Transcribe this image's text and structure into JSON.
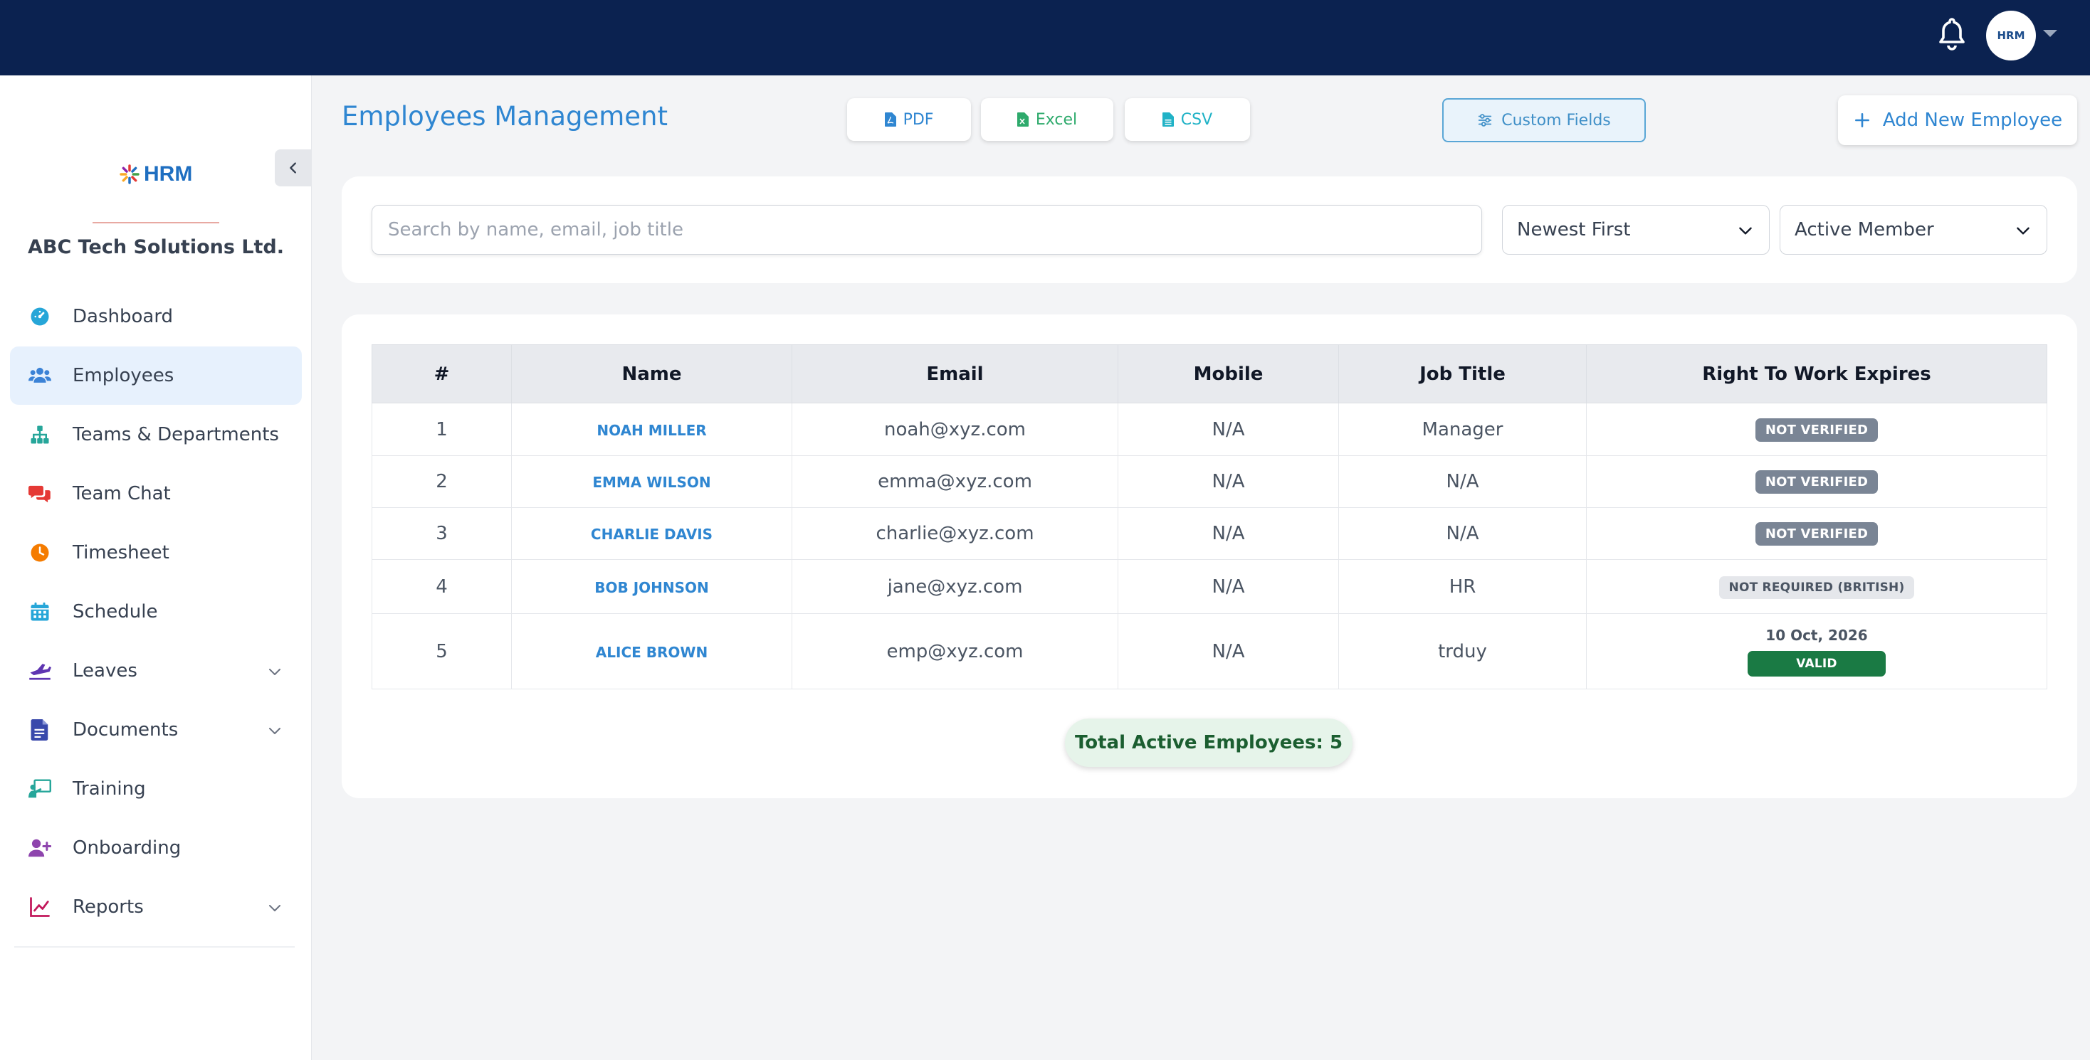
{
  "topbar": {
    "avatar_text": "HRM",
    "icons": [
      "bell-icon",
      "chevron-down-icon"
    ]
  },
  "sidebar": {
    "logo_text": "HRM",
    "company": "ABC Tech Solutions Ltd.",
    "items": [
      {
        "label": "Dashboard",
        "icon": "dashboard-icon",
        "color": "#26a6d8"
      },
      {
        "label": "Employees",
        "icon": "users-icon",
        "color": "#3b82d6",
        "active": true
      },
      {
        "label": "Teams & Departments",
        "icon": "org-chart-icon",
        "color": "#26a69a"
      },
      {
        "label": "Team Chat",
        "icon": "chat-icon",
        "color": "#e53935"
      },
      {
        "label": "Timesheet",
        "icon": "clock-icon",
        "color": "#f57c00"
      },
      {
        "label": "Schedule",
        "icon": "calendar-icon",
        "color": "#26a6d8"
      },
      {
        "label": "Leaves",
        "icon": "plane-icon",
        "color": "#5e35b1",
        "has_children": true
      },
      {
        "label": "Documents",
        "icon": "document-icon",
        "color": "#3949ab",
        "has_children": true
      },
      {
        "label": "Training",
        "icon": "training-icon",
        "color": "#26a69a"
      },
      {
        "label": "Onboarding",
        "icon": "user-plus-icon",
        "color": "#8e44ad"
      },
      {
        "label": "Reports",
        "icon": "line-chart-icon",
        "color": "#c2185b",
        "has_children": true
      }
    ]
  },
  "header": {
    "title": "Employees Management",
    "export": {
      "pdf": "PDF",
      "excel": "Excel",
      "csv": "CSV"
    },
    "custom_fields": "Custom Fields",
    "add_employee": "Add New Employee"
  },
  "filters": {
    "search_placeholder": "Search by name, email, job title",
    "search_value": "",
    "sort": "Newest First",
    "status": "Active Member"
  },
  "table": {
    "columns": [
      "#",
      "Name",
      "Email",
      "Mobile",
      "Job Title",
      "Right To Work Expires"
    ],
    "rows": [
      {
        "num": "1",
        "name": "NOAH MILLER",
        "email": "noah@xyz.com",
        "mobile": "N/A",
        "job": "Manager",
        "rtw": "NOT VERIFIED",
        "rtw_type": "nv"
      },
      {
        "num": "2",
        "name": "EMMA WILSON",
        "email": "emma@xyz.com",
        "mobile": "N/A",
        "job": "N/A",
        "rtw": "NOT VERIFIED",
        "rtw_type": "nv"
      },
      {
        "num": "3",
        "name": "CHARLIE DAVIS",
        "email": "charlie@xyz.com",
        "mobile": "N/A",
        "job": "N/A",
        "rtw": "NOT VERIFIED",
        "rtw_type": "nv"
      },
      {
        "num": "4",
        "name": "BOB JOHNSON",
        "email": "jane@xyz.com",
        "mobile": "N/A",
        "job": "HR",
        "rtw": "NOT REQUIRED (BRITISH)",
        "rtw_type": "nr"
      },
      {
        "num": "5",
        "name": "ALICE BROWN",
        "email": "emp@xyz.com",
        "mobile": "N/A",
        "job": "trduy",
        "rtw": "VALID",
        "rtw_type": "valid",
        "rtw_date": "10 Oct, 2026"
      }
    ]
  },
  "total": "Total Active Employees: 5",
  "colors": {
    "topbar": "#0b2250",
    "accent": "#2f86d1",
    "valid": "#1a7a44",
    "not_verified": "#7a8595"
  }
}
